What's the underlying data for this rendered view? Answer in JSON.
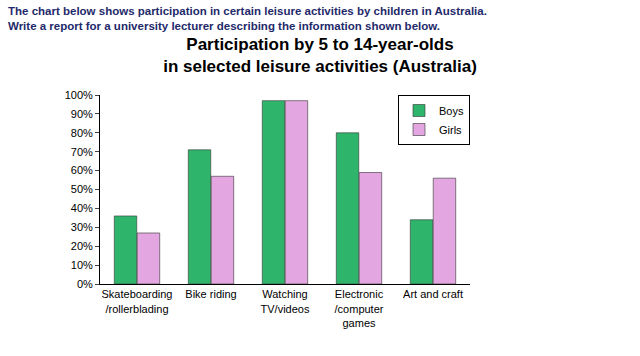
{
  "chart_data": {
    "type": "bar",
    "annotations": [
      "The chart below shows participation in certain leisure activities by children in Australia.",
      "Write a report for a university lecturer describing the information shown below."
    ],
    "title": "Participation by 5 to 14-year-olds\nin selected leisure activities (Australia)",
    "categories": [
      "Skateboarding\n/rollerblading",
      "Bike riding",
      "Watching\nTV/videos",
      "Electronic\n/computer\ngames",
      "Art and craft"
    ],
    "series": [
      {
        "name": "Boys",
        "color": "#2fb56b",
        "values": [
          36,
          71,
          97,
          80,
          34
        ]
      },
      {
        "name": "Girls",
        "color": "#e3a6e0",
        "values": [
          27,
          57,
          97,
          59,
          56
        ]
      }
    ],
    "ylim": [
      0,
      100
    ],
    "yticks": [
      {
        "value": 0,
        "label": "0%"
      },
      {
        "value": 10,
        "label": "10%"
      },
      {
        "value": 20,
        "label": "20%"
      },
      {
        "value": 30,
        "label": "30%"
      },
      {
        "value": 40,
        "label": "40%"
      },
      {
        "value": 50,
        "label": "50%"
      },
      {
        "value": 60,
        "label": "60%"
      },
      {
        "value": 70,
        "label": "70%"
      },
      {
        "value": 80,
        "label": "80%"
      },
      {
        "value": 90,
        "label": "90%"
      },
      {
        "value": 100,
        "label": "100%"
      }
    ],
    "grid": false,
    "legend": "upper right"
  }
}
